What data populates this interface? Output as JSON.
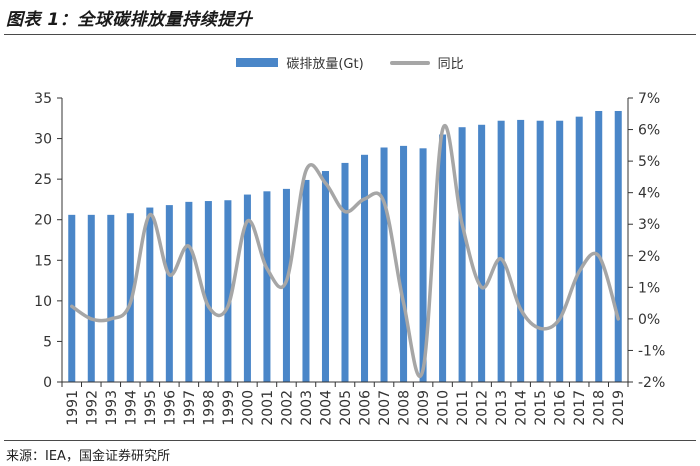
{
  "header": {
    "title": "图表 1：全球碳排放量持续提升"
  },
  "footer": {
    "source": "来源：IEA，国金证券研究所"
  },
  "colors": {
    "bar": "#4a86c8",
    "line": "#a6a6a6",
    "axis": "#333333"
  },
  "chart_data": {
    "type": "bar",
    "legend_position": "top-center",
    "grid": false,
    "categories": [
      "1991",
      "1992",
      "1993",
      "1994",
      "1995",
      "1996",
      "1997",
      "1998",
      "1999",
      "2000",
      "2001",
      "2002",
      "2003",
      "2004",
      "2005",
      "2006",
      "2007",
      "2008",
      "2009",
      "2010",
      "2011",
      "2012",
      "2013",
      "2014",
      "2015",
      "2016",
      "2017",
      "2018",
      "2019"
    ],
    "series": [
      {
        "name": "碳排放量(Gt)",
        "type": "bar",
        "axis": "left",
        "values": [
          20.6,
          20.6,
          20.6,
          20.8,
          21.5,
          21.8,
          22.2,
          22.3,
          22.4,
          23.1,
          23.5,
          23.8,
          24.9,
          26.0,
          27.0,
          28.0,
          28.9,
          29.1,
          28.8,
          30.5,
          31.4,
          31.7,
          32.2,
          32.3,
          32.2,
          32.2,
          32.7,
          33.4,
          33.4
        ]
      },
      {
        "name": "同比",
        "type": "line",
        "axis": "right",
        "values": [
          0.4,
          0.0,
          0.0,
          0.5,
          3.3,
          1.4,
          2.3,
          0.4,
          0.4,
          3.1,
          1.6,
          1.2,
          4.7,
          4.3,
          3.4,
          3.8,
          3.7,
          0.5,
          -1.6,
          6.0,
          3.0,
          1.0,
          1.9,
          0.3,
          -0.3,
          0.0,
          1.5,
          2.0,
          0.0
        ]
      }
    ],
    "y_left": {
      "ticks": [
        "0",
        "5",
        "10",
        "15",
        "20",
        "25",
        "30",
        "35"
      ],
      "ylim": [
        0,
        35
      ]
    },
    "y_right": {
      "ticks": [
        "-2%",
        "-1%",
        "0%",
        "1%",
        "2%",
        "3%",
        "4%",
        "5%",
        "6%",
        "7%"
      ],
      "ylim": [
        -2,
        7
      ]
    }
  }
}
